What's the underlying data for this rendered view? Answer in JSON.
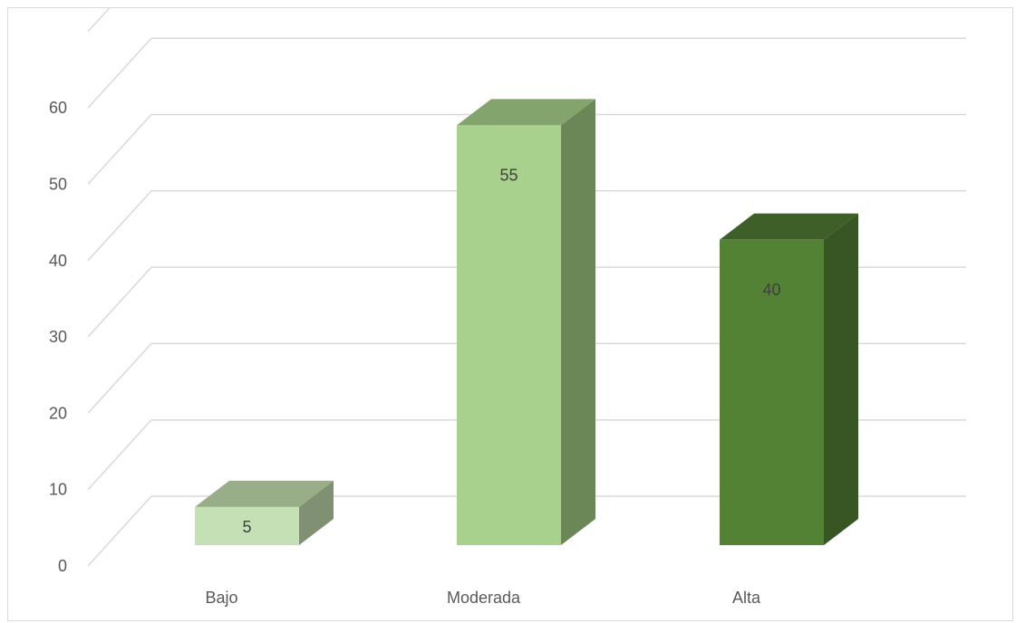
{
  "chart_data": {
    "type": "bar",
    "style": "3d-column",
    "categories": [
      "Bajo",
      "Moderada",
      "Alta"
    ],
    "values": [
      5,
      55,
      40
    ],
    "data_labels": [
      "5",
      "55",
      "40"
    ],
    "ylim": [
      0,
      60
    ],
    "yticks": [
      "0",
      "10",
      "20",
      "30",
      "40",
      "50",
      "60"
    ],
    "grid": true,
    "legend": "none",
    "colors": {
      "bars": [
        {
          "front": "#c5e0b4",
          "side": "#7f9172",
          "top": "#97ae88"
        },
        {
          "front": "#a9d18e",
          "side": "#6b8758",
          "top": "#84a46e"
        },
        {
          "front": "#548235",
          "side": "#375623",
          "top": "#3e5f27"
        }
      ],
      "grid": "#d9d9d9",
      "text": "#595959"
    }
  }
}
